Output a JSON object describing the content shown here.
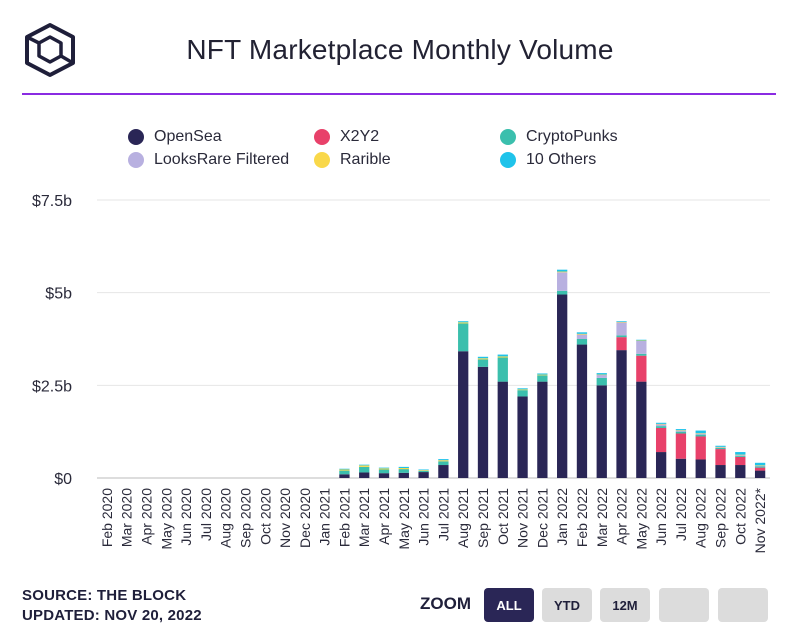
{
  "header": {
    "title": "NFT Marketplace Monthly Volume",
    "logo_icon": "cube-outline-icon",
    "accent_color": "#8a2be2"
  },
  "legend": [
    {
      "name": "OpenSea",
      "color": "#2a2656"
    },
    {
      "name": "X2Y2",
      "color": "#e8416a"
    },
    {
      "name": "CryptoPunks",
      "color": "#3bbfad"
    },
    {
      "name": "LooksRare Filtered",
      "color": "#b8b0e0"
    },
    {
      "name": "Rarible",
      "color": "#f9d84a"
    },
    {
      "name": "10 Others",
      "color": "#1fc3ea"
    }
  ],
  "footer": {
    "source": "SOURCE: THE BLOCK",
    "updated": "UPDATED: NOV 20, 2022"
  },
  "zoom": {
    "label": "ZOOM",
    "buttons": [
      "ALL",
      "YTD",
      "12M",
      "",
      ""
    ],
    "active": "ALL"
  },
  "chart_data": {
    "type": "bar",
    "stacked": true,
    "title": "NFT Marketplace Monthly Volume",
    "ylim": [
      0,
      7.5
    ],
    "yticks": [
      0,
      2.5,
      5,
      7.5
    ],
    "ytick_labels": [
      "$0",
      "$2.5b",
      "$5b",
      "$7.5b"
    ],
    "grid": true,
    "legend_position": "top",
    "categories": [
      "Feb 2020",
      "Mar 2020",
      "Apr 2020",
      "May 2020",
      "Jun 2020",
      "Jul 2020",
      "Aug 2020",
      "Sep 2020",
      "Oct 2020",
      "Nov 2020",
      "Dec 2020",
      "Jan 2021",
      "Feb 2021",
      "Mar 2021",
      "Apr 2021",
      "May 2021",
      "Jun 2021",
      "Jul 2021",
      "Aug 2021",
      "Sep 2021",
      "Oct 2021",
      "Nov 2021",
      "Dec 2021",
      "Jan 2022",
      "Feb 2022",
      "Mar 2022",
      "Apr 2022",
      "May 2022",
      "Jun 2022",
      "Jul 2022",
      "Aug 2022",
      "Sep 2022",
      "Oct 2022",
      "Nov 2022*"
    ],
    "series": [
      {
        "name": "OpenSea",
        "values": [
          0,
          0,
          0,
          0,
          0,
          0,
          0,
          0,
          0,
          0,
          0,
          0,
          0.1,
          0.15,
          0.13,
          0.14,
          0.16,
          0.35,
          3.42,
          3.0,
          2.6,
          2.2,
          2.6,
          4.95,
          3.6,
          2.5,
          3.45,
          2.6,
          0.7,
          0.52,
          0.5,
          0.35,
          0.35,
          0.2
        ]
      },
      {
        "name": "X2Y2",
        "values": [
          0,
          0,
          0,
          0,
          0,
          0,
          0,
          0,
          0,
          0,
          0,
          0,
          0,
          0,
          0,
          0,
          0,
          0,
          0,
          0,
          0,
          0,
          0,
          0,
          0,
          0,
          0.35,
          0.7,
          0.65,
          0.68,
          0.62,
          0.43,
          0.22,
          0.08
        ]
      },
      {
        "name": "CryptoPunks",
        "values": [
          0,
          0,
          0,
          0,
          0,
          0,
          0,
          0,
          0,
          0,
          0,
          0,
          0.1,
          0.15,
          0.1,
          0.1,
          0.03,
          0.1,
          0.75,
          0.2,
          0.65,
          0.17,
          0.17,
          0.1,
          0.15,
          0.2,
          0.05,
          0.05,
          0.05,
          0.05,
          0.05,
          0.03,
          0.03,
          0.03
        ]
      },
      {
        "name": "LooksRare Filtered",
        "values": [
          0,
          0,
          0,
          0,
          0,
          0,
          0,
          0,
          0,
          0,
          0,
          0,
          0,
          0,
          0,
          0,
          0,
          0,
          0,
          0,
          0,
          0,
          0,
          0.5,
          0.12,
          0.08,
          0.35,
          0.35,
          0.05,
          0.03,
          0.03,
          0.02,
          0.02,
          0.02
        ]
      },
      {
        "name": "Rarible",
        "values": [
          0,
          0,
          0,
          0,
          0,
          0,
          0,
          0,
          0,
          0,
          0,
          0,
          0.03,
          0.04,
          0.03,
          0.03,
          0.02,
          0.03,
          0.03,
          0.03,
          0.03,
          0.02,
          0.02,
          0.02,
          0.02,
          0.01,
          0.01,
          0.01,
          0.01,
          0.01,
          0.01,
          0.01,
          0.01,
          0.01
        ]
      },
      {
        "name": "10 Others",
        "values": [
          0,
          0,
          0,
          0,
          0,
          0,
          0,
          0,
          0,
          0,
          0,
          0,
          0.02,
          0.02,
          0.02,
          0.03,
          0.02,
          0.03,
          0.03,
          0.04,
          0.05,
          0.03,
          0.03,
          0.05,
          0.04,
          0.04,
          0.02,
          0.02,
          0.03,
          0.03,
          0.07,
          0.03,
          0.07,
          0.07
        ]
      }
    ]
  }
}
